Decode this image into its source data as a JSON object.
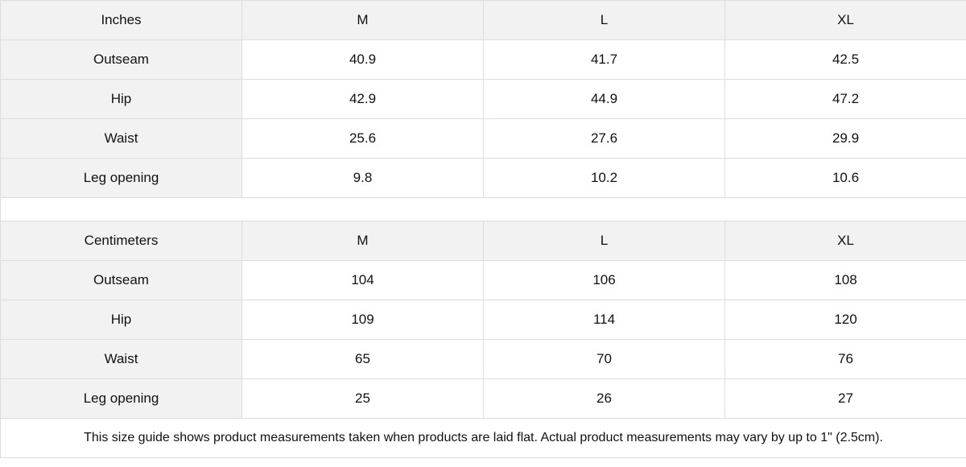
{
  "tables": [
    {
      "unit": "Inches",
      "sizes": [
        "M",
        "L",
        "XL"
      ],
      "rows": [
        {
          "label": "Outseam",
          "values": [
            "40.9",
            "41.7",
            "42.5"
          ]
        },
        {
          "label": "Hip",
          "values": [
            "42.9",
            "44.9",
            "47.2"
          ]
        },
        {
          "label": "Waist",
          "values": [
            "25.6",
            "27.6",
            "29.9"
          ]
        },
        {
          "label": "Leg opening",
          "values": [
            "9.8",
            "10.2",
            "10.6"
          ]
        }
      ]
    },
    {
      "unit": "Centimeters",
      "sizes": [
        "M",
        "L",
        "XL"
      ],
      "rows": [
        {
          "label": "Outseam",
          "values": [
            "104",
            "106",
            "108"
          ]
        },
        {
          "label": "Hip",
          "values": [
            "109",
            "114",
            "120"
          ]
        },
        {
          "label": "Waist",
          "values": [
            "65",
            "70",
            "76"
          ]
        },
        {
          "label": "Leg opening",
          "values": [
            "25",
            "26",
            "27"
          ]
        }
      ]
    }
  ],
  "note": "This size guide shows product measurements taken when products are laid flat.  Actual product measurements may vary by up to 1\" (2.5cm).",
  "colors": {
    "header_bg": "#f2f2f2",
    "border": "#dddddd",
    "text": "#111111"
  }
}
